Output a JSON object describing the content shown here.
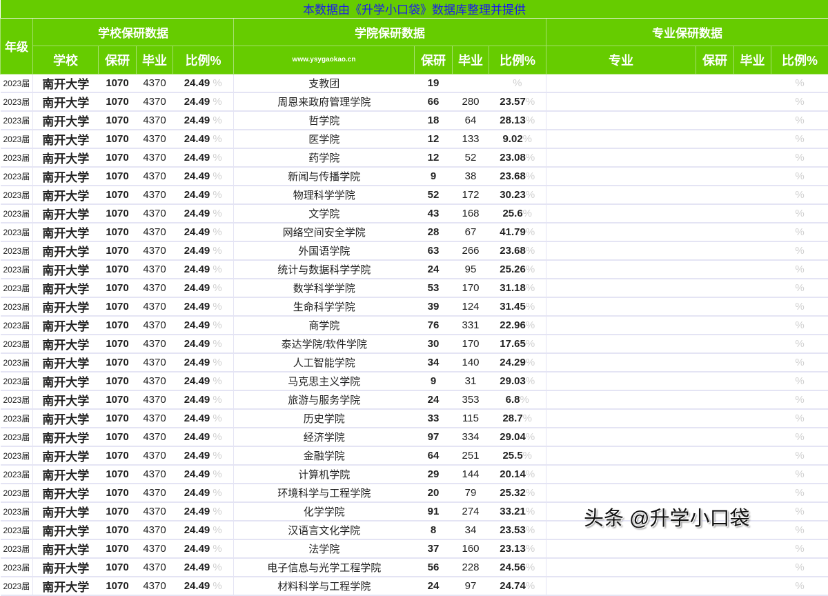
{
  "title": "本数据由《升学小口袋》数据库整理并提供",
  "header": {
    "year": "年级",
    "school_group": "学校保研数据",
    "college_group": "学院保研数据",
    "major_group": "专业保研数据",
    "school": "学校",
    "baoyan": "保研",
    "biye": "毕业",
    "ratio": "比例%",
    "website": "www.ysygaokao.cn",
    "major": "专业"
  },
  "school_row": {
    "year": "2023届",
    "school": "南开大学",
    "baoyan": "1070",
    "biye": "4370",
    "ratio": "24.49"
  },
  "percent_sign": "%",
  "colleges": [
    [
      "支教团",
      "19",
      "",
      ""
    ],
    [
      "周恩来政府管理学院",
      "66",
      "280",
      "23.57"
    ],
    [
      "哲学院",
      "18",
      "64",
      "28.13"
    ],
    [
      "医学院",
      "12",
      "133",
      "9.02"
    ],
    [
      "药学院",
      "12",
      "52",
      "23.08"
    ],
    [
      "新闻与传播学院",
      "9",
      "38",
      "23.68"
    ],
    [
      "物理科学学院",
      "52",
      "172",
      "30.23"
    ],
    [
      "文学院",
      "43",
      "168",
      "25.6"
    ],
    [
      "网络空间安全学院",
      "28",
      "67",
      "41.79"
    ],
    [
      "外国语学院",
      "63",
      "266",
      "23.68"
    ],
    [
      "统计与数据科学学院",
      "24",
      "95",
      "25.26"
    ],
    [
      "数学科学学院",
      "53",
      "170",
      "31.18"
    ],
    [
      "生命科学学院",
      "39",
      "124",
      "31.45"
    ],
    [
      "商学院",
      "76",
      "331",
      "22.96"
    ],
    [
      "泰达学院/软件学院",
      "30",
      "170",
      "17.65"
    ],
    [
      "人工智能学院",
      "34",
      "140",
      "24.29"
    ],
    [
      "马克思主义学院",
      "9",
      "31",
      "29.03"
    ],
    [
      "旅游与服务学院",
      "24",
      "353",
      "6.8"
    ],
    [
      "历史学院",
      "33",
      "115",
      "28.7"
    ],
    [
      "经济学院",
      "97",
      "334",
      "29.04"
    ],
    [
      "金融学院",
      "64",
      "251",
      "25.5"
    ],
    [
      "计算机学院",
      "29",
      "144",
      "20.14"
    ],
    [
      "环境科学与工程学院",
      "20",
      "79",
      "25.32"
    ],
    [
      "化学学院",
      "91",
      "274",
      "33.21"
    ],
    [
      "汉语言文化学院",
      "8",
      "34",
      "23.53"
    ],
    [
      "法学院",
      "37",
      "160",
      "23.13"
    ],
    [
      "电子信息与光学工程学院",
      "56",
      "228",
      "24.56"
    ],
    [
      "材料科学与工程学院",
      "24",
      "97",
      "24.74"
    ]
  ],
  "watermark": "头条 @升学小口袋",
  "colors": {
    "header_green": "#66cc00",
    "title_blue": "#1a1aee"
  }
}
